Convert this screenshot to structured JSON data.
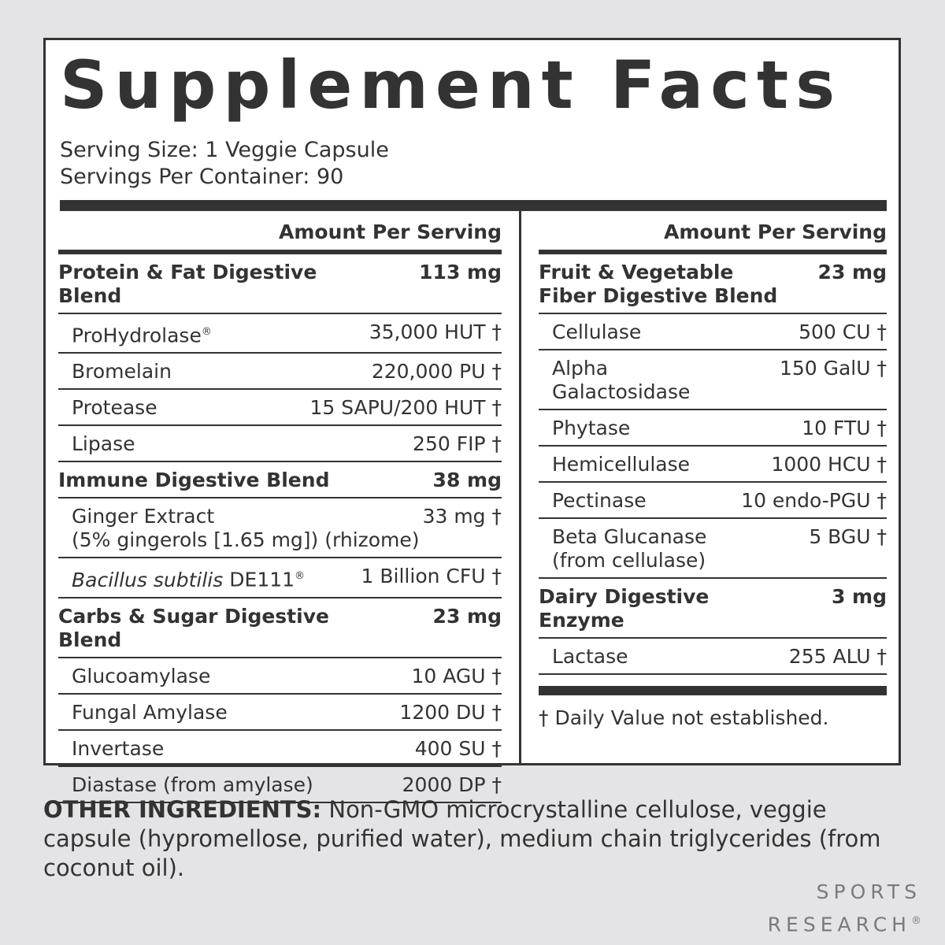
{
  "label": {
    "title": "Supplement Facts",
    "serving_size": "Serving Size: 1 Veggie Capsule",
    "servings_per_container": "Servings Per Container: 90",
    "columns": [
      {
        "header": "Amount Per Serving",
        "blends": [
          {
            "name": "Protein & Fat Digestive Blend",
            "amount": "113 mg",
            "items": [
              {
                "name": "ProHydrolase",
                "mark": "®",
                "amount": "35,000 HUT †"
              },
              {
                "name": "Bromelain",
                "amount": "220,000 PU †"
              },
              {
                "name": "Protease",
                "amount": "15 SAPU/200 HUT †"
              },
              {
                "name": "Lipase",
                "amount": "250 FIP †"
              }
            ]
          },
          {
            "name": "Immune Digestive Blend",
            "amount": "38 mg",
            "items": [
              {
                "name": "Ginger Extract",
                "detail": "(5% gingerols [1.65 mg]) (rhizome)",
                "amount": "33 mg †"
              },
              {
                "italic": "Bacillus subtilis",
                "name": "DE111",
                "mark": "®",
                "amount": "1 Billion CFU †"
              }
            ]
          },
          {
            "name": "Carbs & Sugar Digestive Blend",
            "amount": "23 mg",
            "items": [
              {
                "name": "Glucoamylase",
                "amount": "10 AGU †"
              },
              {
                "name": "Fungal Amylase",
                "amount": "1200 DU †"
              },
              {
                "name": "Invertase",
                "amount": "400 SU †"
              },
              {
                "name": "Diastase (from amylase)",
                "amount": "2000 DP †"
              }
            ]
          }
        ]
      },
      {
        "header": "Amount Per Serving",
        "blends": [
          {
            "name": "Fruit & Vegetable Fiber Digestive Blend",
            "amount": "23 mg",
            "items": [
              {
                "name": "Cellulase",
                "amount": "500 CU †"
              },
              {
                "name": "Alpha",
                "detail": "Galactosidase",
                "amount": "150 GalU †"
              },
              {
                "name": "Phytase",
                "amount": "10 FTU †"
              },
              {
                "name": "Hemicellulase",
                "amount": "1000 HCU †"
              },
              {
                "name": "Pectinase",
                "amount": "10 endo-PGU †"
              },
              {
                "name": "Beta Glucanase",
                "detail": "(from cellulase)",
                "amount": "5 BGU †"
              }
            ]
          },
          {
            "name": "Dairy Digestive Enzyme",
            "amount": "3 mg",
            "items": [
              {
                "name": "Lactase",
                "amount": "255 ALU †"
              }
            ]
          }
        ]
      }
    ],
    "footnote": "† Daily Value not established.",
    "other_ingredients": {
      "label": "OTHER INGREDIENTS:",
      "text": "Non-GMO microcrystalline cellulose, veggie capsule (hypromellose, purified water), medium chain triglycerides (from coconut oil)."
    },
    "brand": {
      "line1": "SPORTS",
      "line2": "RESEARCH",
      "mark": "®"
    }
  }
}
